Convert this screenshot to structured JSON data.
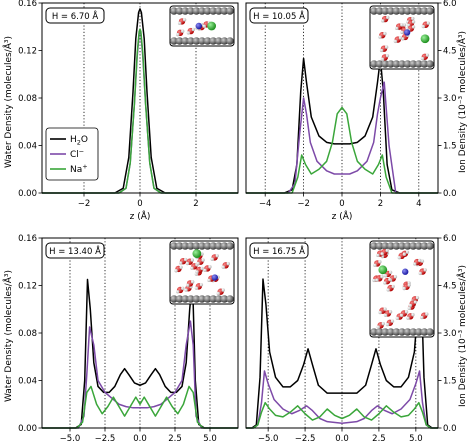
{
  "colors": {
    "h2o": "#000000",
    "cl": "#7d4aa8",
    "na": "#3aa63a"
  },
  "legend": {
    "h2o": {
      "label": "H",
      "sub": "2",
      "tail": "O"
    },
    "cl": {
      "label": "Cl",
      "sup": "−"
    },
    "na": {
      "label": "Na",
      "sup": "+"
    }
  },
  "chart_data": [
    {
      "type": "line",
      "panel": "top-left",
      "annotation": "H = 6.70 Å",
      "xlabel": "z (Å)",
      "ylabel": "Water Density (molecules/Å³)",
      "xlim": [
        -3.5,
        3.5
      ],
      "ylim": [
        0,
        0.16
      ],
      "xticks": [
        -2,
        0,
        2
      ],
      "xtick_labels": [
        "−2",
        "0",
        "2"
      ],
      "yticks": [
        0,
        0.04,
        0.08,
        0.12,
        0.16
      ],
      "ytick_labels": [
        "0.00",
        "0.04",
        "0.08",
        "0.12",
        "0.16"
      ],
      "series": [
        {
          "name": "H2O",
          "axis": "left",
          "x": [
            -3.5,
            -0.9,
            -0.6,
            -0.4,
            -0.25,
            -0.15,
            -0.05,
            0,
            0.05,
            0.15,
            0.25,
            0.4,
            0.6,
            0.9,
            3.5
          ],
          "y": [
            0,
            0,
            0.004,
            0.03,
            0.085,
            0.13,
            0.152,
            0.155,
            0.152,
            0.13,
            0.085,
            0.03,
            0.004,
            0,
            0
          ]
        },
        {
          "name": "Cl−",
          "axis": "left",
          "x": [
            -3.5,
            -0.75,
            -0.5,
            -0.35,
            -0.2,
            -0.1,
            -0.03,
            0,
            0.03,
            0.1,
            0.2,
            0.35,
            0.5,
            0.75,
            3.5
          ],
          "y": [
            0,
            0,
            0.004,
            0.025,
            0.075,
            0.115,
            0.134,
            0.136,
            0.134,
            0.115,
            0.075,
            0.025,
            0.004,
            0,
            0
          ]
        },
        {
          "name": "Na+",
          "axis": "left",
          "x": [
            -3.5,
            -0.75,
            -0.5,
            -0.35,
            -0.2,
            -0.1,
            -0.03,
            0,
            0.03,
            0.1,
            0.2,
            0.35,
            0.5,
            0.75,
            3.5
          ],
          "y": [
            0,
            0,
            0.004,
            0.025,
            0.075,
            0.118,
            0.136,
            0.138,
            0.136,
            0.118,
            0.075,
            0.025,
            0.004,
            0,
            0
          ]
        }
      ]
    },
    {
      "type": "line",
      "panel": "top-right",
      "annotation": "H = 10.05 Å",
      "xlabel": "z (Å)",
      "ylabel": "Ion Density (10⁻³ molecules/Å³)",
      "xlim": [
        -5,
        5
      ],
      "ylim": [
        0,
        6.0
      ],
      "xticks": [
        -4,
        -2,
        0,
        2,
        4
      ],
      "xtick_labels": [
        "−4",
        "−2",
        "0",
        "2",
        "4"
      ],
      "yticks": [
        0,
        1.5,
        3.0,
        4.5,
        6.0
      ],
      "ytick_labels": [
        "0.0",
        "1.5",
        "3.0",
        "4.5",
        "6.0"
      ],
      "series": [
        {
          "name": "H2O",
          "axis": "right",
          "x": [
            -5,
            -3.0,
            -2.6,
            -2.35,
            -2.15,
            -2.0,
            -1.85,
            -1.6,
            -1.2,
            -0.8,
            -0.4,
            0,
            0.4,
            0.8,
            1.2,
            1.6,
            1.85,
            2.0,
            2.15,
            2.35,
            2.6,
            3.0,
            5
          ],
          "y": [
            0,
            0,
            0.1,
            0.9,
            3.2,
            4.25,
            3.5,
            2.4,
            1.8,
            1.6,
            1.55,
            1.55,
            1.55,
            1.6,
            1.8,
            2.4,
            3.5,
            4.25,
            3.2,
            0.9,
            0.1,
            0,
            0
          ]
        },
        {
          "name": "Cl−",
          "axis": "right",
          "x": [
            -5,
            -2.8,
            -2.45,
            -2.2,
            -2.0,
            -1.85,
            -1.65,
            -1.3,
            -0.8,
            -0.4,
            0,
            0.4,
            0.8,
            1.3,
            1.65,
            1.85,
            2.0,
            2.2,
            2.45,
            2.8,
            5
          ],
          "y": [
            0,
            0,
            0.3,
            1.9,
            3.0,
            2.5,
            1.6,
            1.0,
            0.7,
            0.6,
            0.6,
            0.6,
            0.7,
            1.0,
            1.6,
            2.5,
            3.0,
            3.5,
            1.5,
            0,
            0
          ]
        },
        {
          "name": "Na+",
          "axis": "right",
          "x": [
            -5,
            -2.6,
            -2.3,
            -2.1,
            -1.9,
            -1.6,
            -1.2,
            -0.8,
            -0.5,
            -0.25,
            0,
            0.25,
            0.5,
            0.8,
            1.2,
            1.6,
            1.9,
            2.1,
            2.3,
            2.6,
            5
          ],
          "y": [
            0,
            0,
            0.5,
            1.2,
            0.9,
            0.6,
            0.75,
            1.0,
            1.6,
            2.5,
            2.7,
            2.5,
            1.6,
            1.0,
            0.75,
            0.6,
            0.9,
            1.2,
            0.5,
            0,
            0
          ]
        }
      ]
    },
    {
      "type": "line",
      "panel": "bottom-left",
      "annotation": "H = 13.40 Å",
      "xlabel": "z (Å)",
      "ylabel": "Water Density (molecules/Å³)",
      "xlim": [
        -7,
        7
      ],
      "ylim": [
        0,
        0.16
      ],
      "xticks": [
        -5,
        -2.5,
        0,
        2.5,
        5
      ],
      "xtick_labels": [
        "−5.0",
        "−2.5",
        "0.0",
        "2.5",
        "5.0"
      ],
      "yticks": [
        0,
        0.04,
        0.08,
        0.12,
        0.16
      ],
      "ytick_labels": [
        "0.00",
        "0.04",
        "0.08",
        "0.12",
        "0.16"
      ],
      "series": [
        {
          "name": "H2O",
          "axis": "left",
          "x": [
            -7,
            -4.6,
            -4.2,
            -3.95,
            -3.75,
            -3.55,
            -3.3,
            -3.0,
            -2.6,
            -2.2,
            -1.8,
            -1.4,
            -1.1,
            -0.8,
            -0.4,
            0,
            0.4,
            0.8,
            1.1,
            1.4,
            1.8,
            2.2,
            2.6,
            3.0,
            3.3,
            3.55,
            3.75,
            3.95,
            4.2,
            4.6,
            7
          ],
          "y": [
            0,
            0,
            0.003,
            0.04,
            0.125,
            0.1,
            0.055,
            0.035,
            0.03,
            0.03,
            0.035,
            0.045,
            0.05,
            0.045,
            0.038,
            0.036,
            0.038,
            0.045,
            0.05,
            0.045,
            0.035,
            0.03,
            0.03,
            0.035,
            0.055,
            0.1,
            0.125,
            0.04,
            0.003,
            0,
            0
          ]
        },
        {
          "name": "Cl−",
          "axis": "left",
          "x": [
            -7,
            -4.4,
            -4.0,
            -3.8,
            -3.6,
            -3.3,
            -3.0,
            -2.5,
            -2.0,
            -1.5,
            -1.0,
            -0.5,
            0,
            0.5,
            1.0,
            1.5,
            2.0,
            2.5,
            3.0,
            3.3,
            3.6,
            3.8,
            4.0,
            4.4,
            7
          ],
          "y": [
            0,
            0,
            0.01,
            0.045,
            0.085,
            0.07,
            0.04,
            0.03,
            0.025,
            0.02,
            0.018,
            0.017,
            0.017,
            0.017,
            0.018,
            0.02,
            0.025,
            0.03,
            0.04,
            0.07,
            0.09,
            0.07,
            0.01,
            0,
            0
          ]
        },
        {
          "name": "Na+",
          "axis": "left",
          "x": [
            -7,
            -4.5,
            -4.1,
            -3.8,
            -3.5,
            -3.1,
            -2.7,
            -2.3,
            -1.9,
            -1.5,
            -1.1,
            -0.7,
            -0.3,
            0,
            0.3,
            0.7,
            1.1,
            1.5,
            1.9,
            2.3,
            2.7,
            3.1,
            3.5,
            3.8,
            4.1,
            4.5,
            7
          ],
          "y": [
            0,
            0,
            0.005,
            0.03,
            0.035,
            0.02,
            0.012,
            0.018,
            0.026,
            0.018,
            0.01,
            0.018,
            0.026,
            0.02,
            0.026,
            0.018,
            0.01,
            0.018,
            0.026,
            0.018,
            0.012,
            0.02,
            0.035,
            0.03,
            0.005,
            0,
            0
          ]
        }
      ]
    },
    {
      "type": "line",
      "panel": "bottom-right",
      "annotation": "H = 16.75 Å",
      "xlabel": "z (Å)",
      "ylabel": "Ion Density (10⁻³ molecules/Å³)",
      "xlim": [
        -6.5,
        6.5
      ],
      "ylim": [
        0,
        6.0
      ],
      "xticks": [
        -5,
        -2.5,
        0,
        2.5,
        5
      ],
      "xtick_labels": [
        "−5.0",
        "−2.5",
        "0.0",
        "2.5",
        "5.0"
      ],
      "yticks": [
        0,
        1.5,
        3.0,
        4.5,
        6.0
      ],
      "ytick_labels": [
        "0.0",
        "1.5",
        "3.0",
        "4.5",
        "6.0"
      ],
      "series": [
        {
          "name": "H2O",
          "axis": "right",
          "x": [
            -6.5,
            -6.1,
            -5.8,
            -5.55,
            -5.35,
            -5.15,
            -4.9,
            -4.5,
            -4.0,
            -3.5,
            -3.0,
            -2.6,
            -2.3,
            -2.0,
            -1.6,
            -1.0,
            0,
            1.0,
            1.6,
            2.0,
            2.3,
            2.6,
            3.0,
            3.5,
            4.0,
            4.5,
            4.9,
            5.15,
            5.35,
            5.55,
            5.8,
            6.1,
            6.5
          ],
          "y": [
            0,
            0,
            0.1,
            1.6,
            4.7,
            3.9,
            2.4,
            1.6,
            1.3,
            1.3,
            1.5,
            2.0,
            2.5,
            2.0,
            1.35,
            1.1,
            1.1,
            1.1,
            1.35,
            2.0,
            2.5,
            2.0,
            1.5,
            1.3,
            1.3,
            1.6,
            2.4,
            3.9,
            4.7,
            1.6,
            0.1,
            0,
            0
          ]
        },
        {
          "name": "Cl−",
          "axis": "right",
          "x": [
            -6.5,
            -6.0,
            -5.7,
            -5.45,
            -5.25,
            -5.0,
            -4.6,
            -4.0,
            -3.4,
            -2.9,
            -2.4,
            -2.0,
            -1.5,
            -1.0,
            0,
            1.0,
            1.5,
            2.0,
            2.4,
            2.9,
            3.4,
            4.0,
            4.6,
            5.0,
            5.25,
            5.45,
            5.7,
            6.0,
            6.5
          ],
          "y": [
            0,
            0,
            0.1,
            0.8,
            1.8,
            1.4,
            0.9,
            0.6,
            0.45,
            0.55,
            0.7,
            0.55,
            0.3,
            0.2,
            0.15,
            0.2,
            0.3,
            0.55,
            0.7,
            0.55,
            0.45,
            0.6,
            0.9,
            1.4,
            1.8,
            0.8,
            0.1,
            0,
            0
          ]
        },
        {
          "name": "Na+",
          "axis": "right",
          "x": [
            -6.5,
            -6.0,
            -5.7,
            -5.45,
            -5.2,
            -4.9,
            -4.5,
            -4.0,
            -3.5,
            -3.0,
            -2.5,
            -2.0,
            -1.5,
            -1.0,
            -0.5,
            0,
            0.5,
            1.0,
            1.5,
            2.0,
            2.5,
            3.0,
            3.5,
            4.0,
            4.5,
            4.9,
            5.2,
            5.45,
            5.7,
            6.0,
            6.5
          ],
          "y": [
            0,
            0,
            0.1,
            0.5,
            0.8,
            0.6,
            0.4,
            0.35,
            0.5,
            0.7,
            0.45,
            0.25,
            0.35,
            0.6,
            0.4,
            0.3,
            0.4,
            0.6,
            0.35,
            0.25,
            0.45,
            0.7,
            0.5,
            0.35,
            0.4,
            0.6,
            0.8,
            0.5,
            0.1,
            0,
            0
          ]
        }
      ]
    }
  ]
}
